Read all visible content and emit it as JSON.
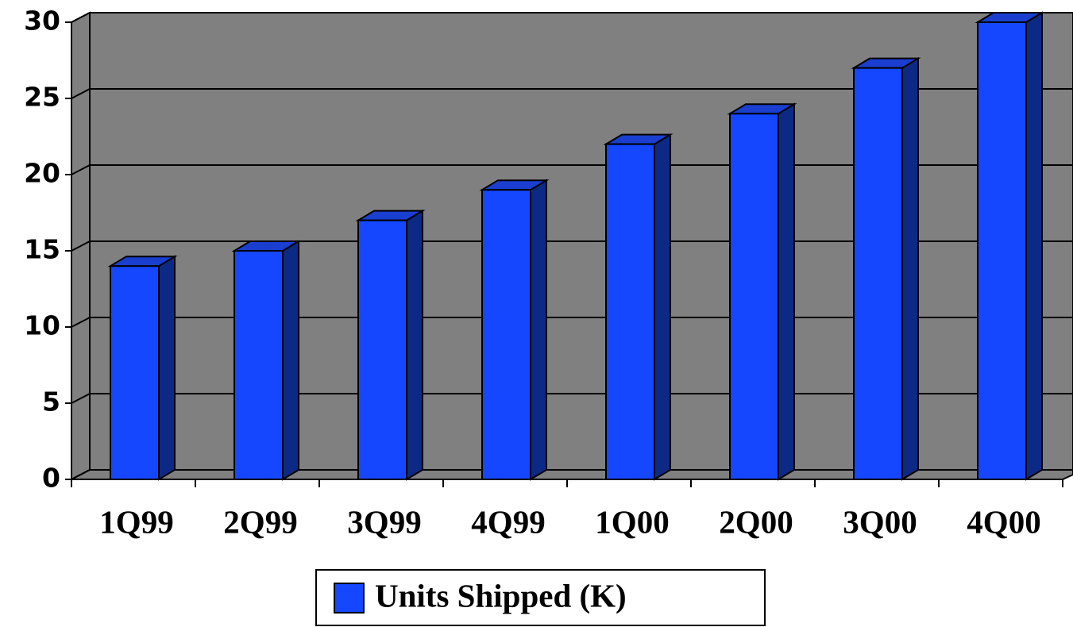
{
  "chart_data": {
    "type": "bar",
    "categories": [
      "1Q99",
      "2Q99",
      "3Q99",
      "4Q99",
      "1Q00",
      "2Q00",
      "3Q00",
      "4Q00"
    ],
    "series": [
      {
        "name": "Units Shipped (K)",
        "color": "#1447ff",
        "values": [
          14,
          15,
          17,
          19,
          22,
          24,
          27,
          30
        ]
      }
    ],
    "ylim": [
      0,
      30
    ],
    "yticks": [
      0,
      5,
      10,
      15,
      20,
      25,
      30
    ],
    "grid": true,
    "legend": "bottom"
  }
}
